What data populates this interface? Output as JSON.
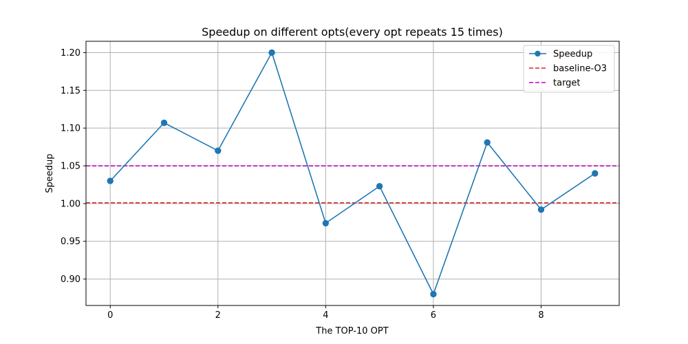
{
  "chart_data": {
    "type": "line",
    "title": "Speedup on different opts(every opt repeats 15 times)",
    "xlabel": "The TOP-10 OPT",
    "ylabel": "Speedup",
    "xlim": [
      -0.45,
      9.45
    ],
    "ylim": [
      0.865,
      1.215
    ],
    "x_ticks": [
      0,
      2,
      4,
      6,
      8
    ],
    "x_tick_labels": [
      "0",
      "2",
      "4",
      "6",
      "8"
    ],
    "y_ticks": [
      0.9,
      0.95,
      1.0,
      1.05,
      1.1,
      1.15,
      1.2
    ],
    "y_tick_labels": [
      "0.90",
      "0.95",
      "1.00",
      "1.05",
      "1.10",
      "1.15",
      "1.20"
    ],
    "grid": true,
    "legend_position": "top-right",
    "series": [
      {
        "name": "Speedup",
        "color": "#1f77b4",
        "style": "solid",
        "marker": "circle",
        "x": [
          0,
          1,
          2,
          3,
          4,
          5,
          6,
          7,
          8,
          9
        ],
        "values": [
          1.03,
          1.107,
          1.07,
          1.2,
          0.974,
          1.023,
          0.88,
          1.081,
          0.992,
          1.04
        ]
      }
    ],
    "reference_lines": [
      {
        "name": "baseline-O3",
        "y": 1.001,
        "color": "#d62728",
        "style": "dashed"
      },
      {
        "name": "target",
        "y": 1.05,
        "color": "#bf00bf",
        "style": "dashed"
      }
    ]
  }
}
